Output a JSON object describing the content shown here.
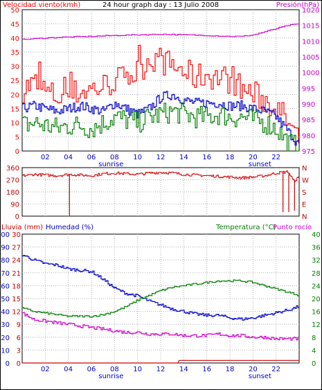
{
  "chart_data": [
    {
      "type": "line",
      "title": "24 hour graph day : 13 Julio 2008",
      "left_label": "Velocidad viento(kmh)",
      "right_label": "Presión(hPa)",
      "x_ticks": [
        "02",
        "04",
        "06",
        "08",
        "10",
        "12",
        "14",
        "16",
        "18",
        "20",
        "22"
      ],
      "x_annotations": {
        "sunrise_label": "sunrise",
        "sunset_label": "sunset"
      },
      "left_ticks": [
        "50",
        "45",
        "40",
        "35",
        "30",
        "25",
        "20",
        "15",
        "10",
        "5",
        "0"
      ],
      "right_ticks": [
        "1020",
        "1015",
        "1010",
        "1005",
        "1000",
        "995",
        "990",
        "985",
        "980",
        "975"
      ],
      "ylim_left": [
        0,
        50
      ],
      "ylim_right": [
        975,
        1020
      ],
      "series": [
        {
          "color": "#ff0000",
          "axis": "left",
          "kind": "gust",
          "x": [
            0,
            1,
            2,
            3,
            4,
            5,
            6,
            7,
            8,
            9,
            10,
            11,
            12,
            13,
            14,
            15,
            16,
            17,
            18,
            19,
            20,
            21,
            22,
            23,
            24
          ],
          "y": [
            22,
            24,
            21,
            19,
            20,
            21,
            22,
            23,
            25,
            26,
            28,
            33,
            32,
            30,
            28,
            26,
            27,
            26,
            25,
            22,
            20,
            18,
            15,
            10,
            3
          ]
        },
        {
          "color": "#0000cc",
          "axis": "left",
          "kind": "average",
          "x": [
            0,
            1,
            2,
            3,
            4,
            5,
            6,
            7,
            8,
            9,
            10,
            11,
            12,
            13,
            14,
            15,
            16,
            17,
            18,
            19,
            20,
            21,
            22,
            23,
            24
          ],
          "y": [
            15,
            16,
            15,
            14,
            15,
            16,
            15,
            14,
            17,
            15,
            13,
            15,
            19,
            20,
            18,
            17,
            17,
            17,
            16,
            16,
            15,
            14,
            12,
            7,
            2
          ]
        },
        {
          "color": "#008000",
          "axis": "left",
          "kind": "low",
          "x": [
            0,
            1,
            2,
            3,
            4,
            5,
            6,
            7,
            8,
            9,
            10,
            11,
            12,
            13,
            14,
            15,
            16,
            17,
            18,
            19,
            20,
            21,
            22,
            23,
            24
          ],
          "y": [
            9,
            10,
            9,
            8,
            9,
            9,
            8,
            10,
            12,
            11,
            10,
            12,
            13,
            14,
            13,
            12,
            12,
            13,
            12,
            12,
            11,
            10,
            8,
            3,
            1
          ]
        },
        {
          "color": "#cc00cc",
          "axis": "right",
          "kind": "pressure",
          "x": [
            0,
            2,
            4,
            6,
            8,
            10,
            12,
            14,
            16,
            18,
            19,
            20,
            21,
            22,
            23,
            24
          ],
          "y": [
            1010.5,
            1011,
            1011.3,
            1011.5,
            1011.8,
            1012,
            1012.2,
            1012,
            1011.8,
            1011.5,
            1011.5,
            1012,
            1013,
            1014,
            1015,
            1015.5
          ]
        }
      ]
    },
    {
      "type": "line",
      "left_ticks": [
        "360",
        "270",
        "180",
        "90",
        "0"
      ],
      "right_ticks": [
        "N",
        "W",
        "S",
        "E",
        "N"
      ],
      "ylim": [
        0,
        360
      ],
      "series": [
        {
          "color": "#cc0000",
          "kind": "wind_direction",
          "x": [
            0,
            1,
            2,
            3,
            4,
            5,
            6,
            7,
            8,
            9,
            10,
            11,
            12,
            13,
            14,
            15,
            16,
            17,
            18,
            19,
            20,
            21,
            22,
            23,
            23.5,
            24
          ],
          "y": [
            300,
            310,
            305,
            300,
            310,
            305,
            300,
            315,
            320,
            315,
            310,
            320,
            325,
            320,
            310,
            305,
            300,
            295,
            290,
            285,
            290,
            300,
            320,
            330,
            260,
            290
          ],
          "spikes_x": [
            4.1,
            22.6,
            23.1,
            23.6
          ],
          "spikes_y": [
            0,
            30,
            30,
            40
          ]
        }
      ]
    },
    {
      "type": "line",
      "left_label_1": "Lluvia (mm)",
      "left_label_2": "Humedad (%)",
      "right_label_1": "Temperatura (°C)",
      "right_label_2": "Punto rocío",
      "humidity_ticks": [
        "100",
        "90",
        "80",
        "70",
        "60",
        "50",
        "40",
        "30",
        "20",
        "10",
        "0"
      ],
      "rain_ticks": [
        "30",
        "27",
        "24",
        "21",
        "18",
        "15",
        "12",
        "9",
        "6",
        "3",
        "0"
      ],
      "temp_ticks": [
        "40",
        "36",
        "32",
        "28",
        "24",
        "20",
        "16",
        "12",
        "8",
        "4",
        "0"
      ],
      "ylim_humidity": [
        0,
        100
      ],
      "ylim_temp": [
        0,
        40
      ],
      "series": [
        {
          "color": "#0000cc",
          "axis": "humidity",
          "kind": "humidity",
          "x": [
            0,
            1,
            2,
            3,
            4,
            5,
            6,
            7,
            8,
            9,
            10,
            11,
            12,
            13,
            14,
            15,
            16,
            17,
            18,
            19,
            20,
            21,
            22,
            23,
            24
          ],
          "y": [
            84,
            80,
            77,
            76,
            73,
            72,
            71,
            65,
            58,
            54,
            52,
            48,
            45,
            42,
            40,
            38,
            37,
            37,
            35,
            34,
            35,
            37,
            39,
            41,
            44
          ]
        },
        {
          "color": "#008000",
          "axis": "temp",
          "kind": "temperature",
          "x": [
            0,
            1,
            2,
            3,
            4,
            5,
            6,
            7,
            8,
            9,
            10,
            11,
            12,
            13,
            14,
            15,
            16,
            17,
            18,
            19,
            20,
            21,
            22,
            23,
            24
          ],
          "y": [
            17,
            16,
            15.5,
            15,
            14.5,
            14.5,
            14.5,
            15,
            16,
            17.5,
            19.5,
            21,
            22.5,
            23.5,
            24,
            24.5,
            25,
            25.5,
            25.5,
            25.5,
            25,
            24,
            23,
            22,
            21
          ]
        },
        {
          "color": "#cc00cc",
          "axis": "temp",
          "kind": "dew_point",
          "x": [
            0,
            1,
            2,
            3,
            4,
            5,
            6,
            7,
            8,
            9,
            10,
            11,
            12,
            13,
            14,
            15,
            16,
            17,
            18,
            19,
            20,
            21,
            22,
            23,
            24
          ],
          "y": [
            15.5,
            13.5,
            13,
            12.5,
            12,
            11.5,
            11,
            10.5,
            10,
            9.5,
            9.5,
            9,
            9,
            9,
            8.5,
            8.5,
            8.5,
            9,
            8.5,
            8.5,
            8,
            8,
            7.5,
            7.5,
            7.5
          ]
        },
        {
          "color": "#cc0000",
          "axis": "rain",
          "kind": "rain",
          "x": [
            0,
            13.5,
            13.6,
            24
          ],
          "y": [
            0,
            0,
            0.6,
            0.6
          ]
        }
      ]
    }
  ]
}
